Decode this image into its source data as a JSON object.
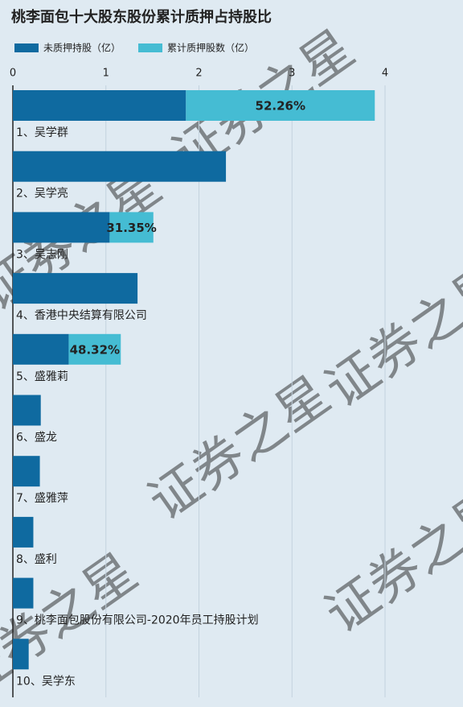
{
  "chart_data": {
    "type": "stacked-barh",
    "title": "桃李面包十大股东股份累计质押占持股比",
    "categories": [
      "1、吴学群",
      "2、吴学亮",
      "3、吴志刚",
      "4、香港中央结算有限公司",
      "5、盛雅莉",
      "6、盛龙",
      "7、盛雅萍",
      "8、盛利",
      "9、桃李面包股份有限公司-2020年员工持股计划",
      "10、吴学东"
    ],
    "series": [
      {
        "name": "未质押持股（亿）",
        "color": "#0f6aa0",
        "values": [
          1.86,
          2.29,
          1.04,
          1.34,
          0.6,
          0.3,
          0.29,
          0.22,
          0.22,
          0.17
        ]
      },
      {
        "name": "累计质押股数（亿）",
        "color": "#45bcd3",
        "values": [
          2.03,
          null,
          0.47,
          null,
          0.56,
          null,
          null,
          null,
          null,
          null
        ]
      }
    ],
    "ratio_labels": [
      "52.26%",
      null,
      "31.35%",
      null,
      "48.32%",
      null,
      null,
      null,
      null,
      null
    ],
    "xlim": [
      0,
      4
    ],
    "xticks": [
      0,
      1,
      2,
      3,
      4
    ],
    "grid": true,
    "watermark": "证券之星"
  }
}
